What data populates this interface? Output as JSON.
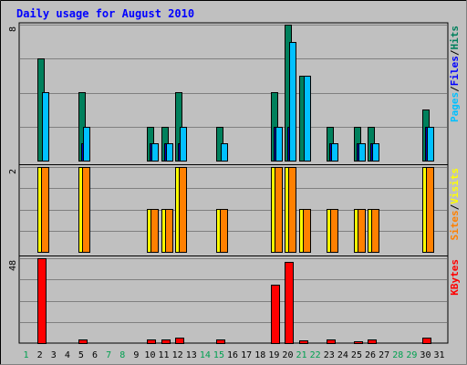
{
  "title": "Daily usage for August 2010",
  "colors": {
    "background": "#c0c0c0",
    "plot_bg": "#c0c0c0",
    "title": "#0000ff",
    "hits": "#00805c",
    "files": "#0080ff",
    "files_bar": "#00c0ff",
    "pages": "#00c0ff",
    "pages_bar": "#0000c0",
    "visits": "#ffff00",
    "visits_bar": "#ffff00",
    "sites": "#ff8000",
    "sites_bar": "#ff8000",
    "kbytes": "#ff0000",
    "kbytes_bar": "#ff0000",
    "weekday": "#008080",
    "weekend": "#00a050",
    "day_default": "#000000"
  },
  "chart_data": [
    {
      "type": "bar",
      "panel": "hits-files-pages",
      "title": "Daily usage for August 2010",
      "ymax_label": "8",
      "ylim": [
        0,
        8
      ],
      "categories": [
        "1",
        "2",
        "3",
        "4",
        "5",
        "6",
        "7",
        "8",
        "9",
        "10",
        "11",
        "12",
        "13",
        "14",
        "15",
        "16",
        "17",
        "18",
        "19",
        "20",
        "21",
        "22",
        "23",
        "24",
        "25",
        "26",
        "27",
        "28",
        "29",
        "30",
        "31"
      ],
      "legend": [
        {
          "label": "Pages",
          "color": "#00c0ff"
        },
        {
          "label": "/",
          "color": "#000000"
        },
        {
          "label": "Files",
          "color": "#0000ff"
        },
        {
          "label": "/",
          "color": "#000000"
        },
        {
          "label": "Hits",
          "color": "#00805c"
        }
      ],
      "series": [
        {
          "name": "Hits",
          "values": [
            0,
            6,
            0,
            0,
            4,
            0,
            0,
            0,
            0,
            2,
            2,
            4,
            0,
            0,
            2,
            0,
            0,
            0,
            4,
            8,
            5,
            0,
            2,
            0,
            2,
            2,
            0,
            0,
            0,
            3,
            0
          ]
        },
        {
          "name": "Files",
          "values": [
            0,
            4,
            0,
            0,
            2,
            0,
            0,
            0,
            0,
            1,
            1,
            2,
            0,
            0,
            1,
            0,
            0,
            0,
            2,
            7,
            5,
            0,
            1,
            0,
            1,
            1,
            0,
            0,
            0,
            2,
            0
          ]
        },
        {
          "name": "Pages",
          "values": [
            0,
            0,
            0,
            0,
            1,
            0,
            0,
            0,
            0,
            1,
            1,
            1,
            0,
            0,
            0,
            0,
            0,
            0,
            2,
            2,
            0,
            0,
            1,
            0,
            1,
            1,
            0,
            0,
            0,
            2,
            0
          ]
        }
      ]
    },
    {
      "type": "bar",
      "panel": "sites-visits",
      "ymax_label": "2",
      "ylim": [
        0,
        2
      ],
      "categories": [
        "1",
        "2",
        "3",
        "4",
        "5",
        "6",
        "7",
        "8",
        "9",
        "10",
        "11",
        "12",
        "13",
        "14",
        "15",
        "16",
        "17",
        "18",
        "19",
        "20",
        "21",
        "22",
        "23",
        "24",
        "25",
        "26",
        "27",
        "28",
        "29",
        "30",
        "31"
      ],
      "legend": [
        {
          "label": "Sites",
          "color": "#ff8000"
        },
        {
          "label": "/",
          "color": "#000000"
        },
        {
          "label": "Visits",
          "color": "#ffff00"
        }
      ],
      "series": [
        {
          "name": "Visits",
          "values": [
            0,
            2,
            0,
            0,
            2,
            0,
            0,
            0,
            0,
            1,
            1,
            2,
            0,
            0,
            1,
            0,
            0,
            0,
            2,
            2,
            1,
            0,
            1,
            0,
            1,
            1,
            0,
            0,
            0,
            2,
            0
          ]
        },
        {
          "name": "Sites",
          "values": [
            0,
            2,
            0,
            0,
            2,
            0,
            0,
            0,
            0,
            1,
            1,
            2,
            0,
            0,
            1,
            0,
            0,
            0,
            2,
            2,
            1,
            0,
            1,
            0,
            1,
            1,
            0,
            0,
            0,
            2,
            0
          ]
        }
      ]
    },
    {
      "type": "bar",
      "panel": "kbytes",
      "ymax_label": "48",
      "ylim": [
        0,
        48
      ],
      "categories": [
        "1",
        "2",
        "3",
        "4",
        "5",
        "6",
        "7",
        "8",
        "9",
        "10",
        "11",
        "12",
        "13",
        "14",
        "15",
        "16",
        "17",
        "18",
        "19",
        "20",
        "21",
        "22",
        "23",
        "24",
        "25",
        "26",
        "27",
        "28",
        "29",
        "30",
        "31"
      ],
      "legend": [
        {
          "label": "KBytes",
          "color": "#ff0000"
        }
      ],
      "series": [
        {
          "name": "KBytes",
          "values": [
            0,
            48,
            0,
            0,
            2,
            0,
            0,
            0,
            0,
            2,
            2,
            3,
            0,
            0,
            2,
            0,
            0,
            0,
            33,
            46,
            1.5,
            0,
            2,
            0,
            0.5,
            2,
            0,
            0,
            0,
            3,
            0
          ]
        }
      ]
    }
  ],
  "day_labels": [
    {
      "label": "1",
      "kind": "weekend"
    },
    {
      "label": "2",
      "kind": "default"
    },
    {
      "label": "3",
      "kind": "default"
    },
    {
      "label": "4",
      "kind": "default"
    },
    {
      "label": "5",
      "kind": "default"
    },
    {
      "label": "6",
      "kind": "default"
    },
    {
      "label": "7",
      "kind": "weekend"
    },
    {
      "label": "8",
      "kind": "weekend"
    },
    {
      "label": "9",
      "kind": "default"
    },
    {
      "label": "10",
      "kind": "default"
    },
    {
      "label": "11",
      "kind": "default"
    },
    {
      "label": "12",
      "kind": "default"
    },
    {
      "label": "13",
      "kind": "default"
    },
    {
      "label": "14",
      "kind": "weekend"
    },
    {
      "label": "15",
      "kind": "weekend"
    },
    {
      "label": "16",
      "kind": "default"
    },
    {
      "label": "17",
      "kind": "default"
    },
    {
      "label": "18",
      "kind": "default"
    },
    {
      "label": "19",
      "kind": "default"
    },
    {
      "label": "20",
      "kind": "default"
    },
    {
      "label": "21",
      "kind": "weekend"
    },
    {
      "label": "22",
      "kind": "weekend"
    },
    {
      "label": "23",
      "kind": "default"
    },
    {
      "label": "24",
      "kind": "default"
    },
    {
      "label": "25",
      "kind": "default"
    },
    {
      "label": "26",
      "kind": "default"
    },
    {
      "label": "27",
      "kind": "default"
    },
    {
      "label": "28",
      "kind": "weekend"
    },
    {
      "label": "29",
      "kind": "weekend"
    },
    {
      "label": "30",
      "kind": "default"
    },
    {
      "label": "31",
      "kind": "default"
    }
  ]
}
